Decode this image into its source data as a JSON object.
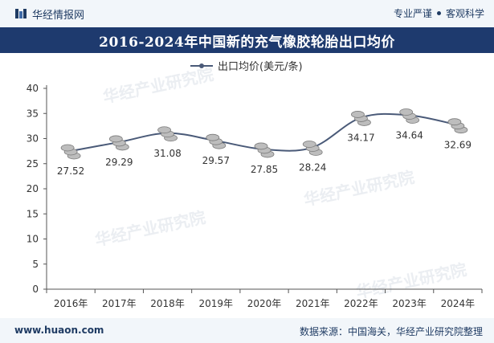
{
  "header": {
    "brand": "华经情报网",
    "tags": [
      "专业严谨",
      "客观科学"
    ]
  },
  "chart_data": {
    "type": "line",
    "title": "2016-2024年中国新的充气橡胶轮胎出口均价",
    "categories": [
      "2016年",
      "2017年",
      "2018年",
      "2019年",
      "2020年",
      "2021年",
      "2022年",
      "2023年",
      "2024年"
    ],
    "series": [
      {
        "name": "出口均价(美元/条)",
        "values": [
          27.52,
          29.29,
          31.08,
          29.57,
          27.85,
          28.24,
          34.17,
          34.64,
          32.69
        ],
        "labels": [
          "27.52",
          "29.29",
          "31.08",
          "29.57",
          "27.85",
          "28.24",
          "34.17",
          "34.64",
          "32.69"
        ]
      }
    ],
    "yticks": [
      "0",
      "5",
      "10",
      "15",
      "20",
      "25",
      "30",
      "35",
      "40"
    ],
    "ylim": [
      0,
      40
    ],
    "xlabel": "",
    "ylabel": "",
    "legend_position": "top-center",
    "grid": false,
    "marker": "coin-stack",
    "colors": {
      "line": "#4a5a78",
      "marker": "#bdbdbd"
    },
    "watermark": "华经产业研究院"
  },
  "footer": {
    "url": "www.huaon.com",
    "source": "数据来源：中国海关，华经产业研究院整理"
  }
}
